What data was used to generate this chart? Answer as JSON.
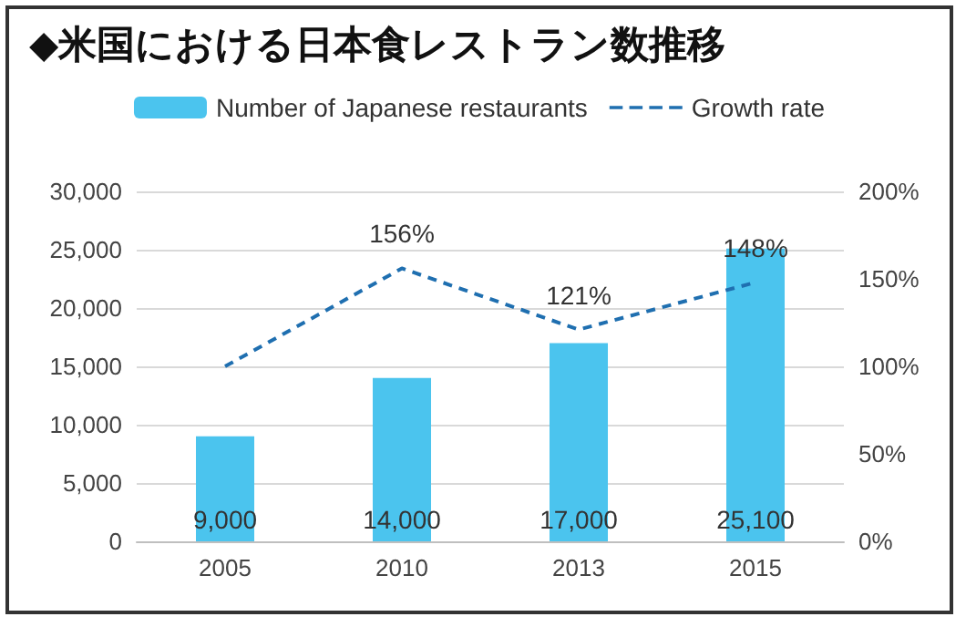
{
  "chart_data": {
    "type": "bar",
    "title": "◆米国における日本食レストラン数推移",
    "categories": [
      "2005",
      "2010",
      "2013",
      "2015"
    ],
    "series": [
      {
        "name": "Number of Japanese restaurants",
        "color": "#4bc4ee",
        "values": [
          9000,
          14000,
          17000,
          25100
        ],
        "value_labels": [
          "9,000",
          "14,000",
          "17,000",
          "25,100"
        ]
      },
      {
        "name": "Growth rate",
        "type": "line",
        "axis": "y2",
        "color": "#1f6fb0",
        "values": [
          100,
          156,
          121,
          148
        ],
        "value_labels": [
          null,
          "156%",
          "121%",
          "148%"
        ]
      }
    ],
    "ylim": [
      0,
      30000
    ],
    "yticks": [
      {
        "value": 0,
        "label": "0"
      },
      {
        "value": 5000,
        "label": "5,000"
      },
      {
        "value": 10000,
        "label": "10,000"
      },
      {
        "value": 15000,
        "label": "15,000"
      },
      {
        "value": 20000,
        "label": "20,000"
      },
      {
        "value": 25000,
        "label": "25,000"
      },
      {
        "value": 30000,
        "label": "30,000"
      }
    ],
    "y2lim": [
      0,
      200
    ],
    "y2ticks": [
      {
        "value": 0,
        "label": "0%"
      },
      {
        "value": 50,
        "label": "50%"
      },
      {
        "value": 100,
        "label": "100%"
      },
      {
        "value": 150,
        "label": "150%"
      },
      {
        "value": 200,
        "label": "200%"
      }
    ],
    "grid": "y",
    "legend": "top",
    "marker": "none",
    "line_style": "dashed"
  }
}
